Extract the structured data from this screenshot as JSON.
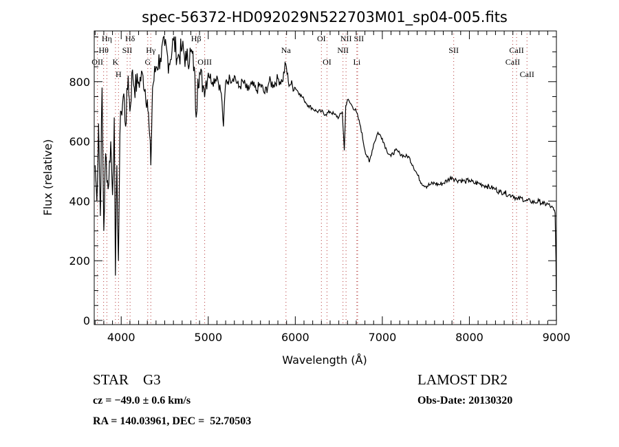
{
  "chart_data": {
    "type": "line",
    "title": "spec-56372-HD092029N522703M01_sp04-005.fits",
    "xlabel": "Wavelength (Å)",
    "ylabel": "Flux (relative)",
    "xlim": [
      3690,
      9000
    ],
    "ylim": [
      -14,
      970
    ],
    "xticks": [
      4000,
      5000,
      6000,
      7000,
      8000,
      9000
    ],
    "yticks": [
      0,
      200,
      400,
      600,
      800
    ],
    "grid": false,
    "series": [
      {
        "name": "spectrum",
        "x": [
          3700,
          3720,
          3740,
          3760,
          3780,
          3800,
          3820,
          3850,
          3880,
          3900,
          3920,
          3933,
          3950,
          3968,
          3985,
          4000,
          4030,
          4050,
          4080,
          4100,
          4130,
          4150,
          4200,
          4250,
          4300,
          4320,
          4340,
          4360,
          4400,
          4450,
          4500,
          4550,
          4600,
          4650,
          4700,
          4750,
          4800,
          4840,
          4861,
          4880,
          4900,
          4950,
          5000,
          5050,
          5100,
          5150,
          5175,
          5200,
          5250,
          5300,
          5350,
          5400,
          5450,
          5500,
          5550,
          5600,
          5650,
          5700,
          5750,
          5800,
          5850,
          5890,
          5920,
          5950,
          6000,
          6050,
          6100,
          6150,
          6200,
          6250,
          6300,
          6350,
          6400,
          6450,
          6500,
          6540,
          6563,
          6580,
          6600,
          6650,
          6700,
          6750,
          6800,
          6850,
          6900,
          6950,
          7000,
          7050,
          7100,
          7150,
          7200,
          7250,
          7300,
          7350,
          7400,
          7450,
          7500,
          7550,
          7600,
          7650,
          7700,
          7750,
          7800,
          7850,
          7900,
          7950,
          8000,
          8050,
          8100,
          8150,
          8200,
          8250,
          8300,
          8350,
          8400,
          8450,
          8500,
          8550,
          8600,
          8650,
          8700,
          8750,
          8800,
          8850,
          8900,
          8940,
          8970,
          8985,
          8995,
          9000
        ],
        "y": [
          520,
          400,
          660,
          350,
          780,
          300,
          560,
          440,
          600,
          420,
          680,
          150,
          520,
          200,
          620,
          700,
          760,
          650,
          820,
          700,
          840,
          780,
          800,
          820,
          740,
          650,
          520,
          780,
          850,
          880,
          920,
          860,
          940,
          880,
          910,
          870,
          900,
          850,
          680,
          810,
          830,
          780,
          830,
          800,
          820,
          760,
          650,
          800,
          810,
          820,
          780,
          800,
          770,
          790,
          770,
          790,
          760,
          800,
          790,
          810,
          800,
          860,
          800,
          790,
          780,
          760,
          740,
          720,
          710,
          700,
          700,
          690,
          700,
          690,
          680,
          700,
          570,
          720,
          740,
          720,
          700,
          650,
          570,
          530,
          590,
          630,
          610,
          570,
          550,
          570,
          560,
          550,
          550,
          520,
          490,
          460,
          450,
          455,
          460,
          455,
          460,
          470,
          480,
          470,
          470,
          465,
          470,
          460,
          460,
          455,
          450,
          445,
          440,
          430,
          430,
          420,
          420,
          405,
          410,
          400,
          400,
          395,
          400,
          390,
          390,
          380,
          370,
          360,
          200,
          0
        ]
      }
    ],
    "line_marks": [
      {
        "label": "OII",
        "wave": 3727,
        "row": 3
      },
      {
        "label": "Hθ",
        "wave": 3798,
        "row": 2
      },
      {
        "label": "Hη",
        "wave": 3835,
        "row": 1
      },
      {
        "label": "K",
        "wave": 3934,
        "row": 3
      },
      {
        "label": "H",
        "wave": 3969,
        "row": 0
      },
      {
        "label": "SII",
        "wave": 4069,
        "row": 2
      },
      {
        "label": "Hδ",
        "wave": 4102,
        "row": 1
      },
      {
        "label": "G",
        "wave": 4305,
        "row": 3
      },
      {
        "label": "Hγ",
        "wave": 4340,
        "row": 2
      },
      {
        "label": "Hβ",
        "wave": 4861,
        "row": 1
      },
      {
        "label": "OIII",
        "wave": 4959,
        "row": 3
      },
      {
        "label": "Na",
        "wave": 5893,
        "row": 2
      },
      {
        "label": "OI",
        "wave": 6300,
        "row": 1
      },
      {
        "label": "OI",
        "wave": 6364,
        "row": 3
      },
      {
        "label": "NII",
        "wave": 6548,
        "row": 2
      },
      {
        "label": "NII",
        "wave": 6583,
        "row": 1
      },
      {
        "label": "Li",
        "wave": 6707,
        "row": 3
      },
      {
        "label": "SII",
        "wave": 6716,
        "row": 1
      },
      {
        "label": "SII",
        "wave": 7820,
        "row": 2
      },
      {
        "label": "CaII",
        "wave": 8498,
        "row": 3
      },
      {
        "label": "CaII",
        "wave": 8542,
        "row": 2
      },
      {
        "label": "CaII",
        "wave": 8662,
        "row": 0
      }
    ]
  },
  "info": {
    "object_class": "STAR",
    "subclass": "G3",
    "survey": "LAMOST DR2",
    "redshift": "cz = −49.0 ± 0.6 km/s",
    "obs_date": "Obs-Date: 20130320",
    "coords": "RA = 140.03961, DEC =  52.70503"
  }
}
